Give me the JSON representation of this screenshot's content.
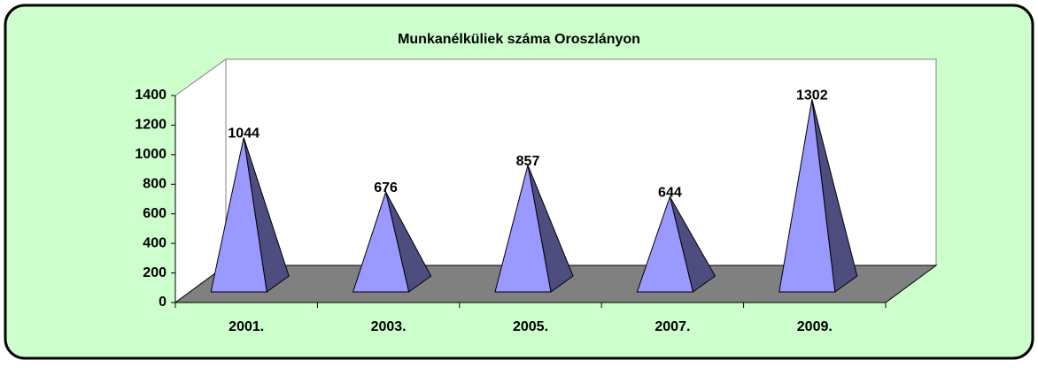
{
  "chart_data": {
    "type": "pyramid3d",
    "title": "Munkanélküliek száma Oroszlányon",
    "categories": [
      "2001.",
      "2003.",
      "2005.",
      "2007.",
      "2009."
    ],
    "values": [
      1044,
      676,
      857,
      644,
      1302
    ],
    "color": "#9999ff",
    "ylim": [
      0,
      1400
    ],
    "yticks": [
      0,
      200,
      400,
      600,
      800,
      1000,
      1200,
      1400
    ]
  }
}
